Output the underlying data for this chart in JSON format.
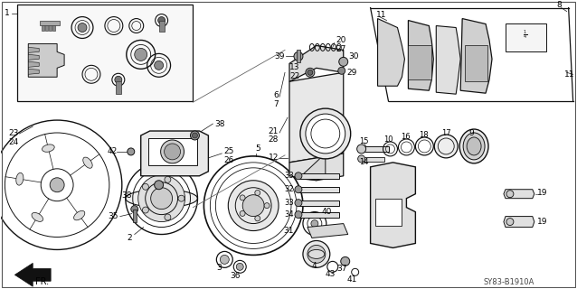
{
  "bg_color": "#ffffff",
  "diagram_code": "SY83-B1910A",
  "fr_label": "FR.",
  "fig_width": 6.38,
  "fig_height": 3.2,
  "dpi": 100,
  "line_color": "#1a1a1a",
  "text_color": "#000000",
  "dark": "#111111",
  "mid": "#555555",
  "light": "#aaaaaa",
  "vlight": "#dddddd"
}
